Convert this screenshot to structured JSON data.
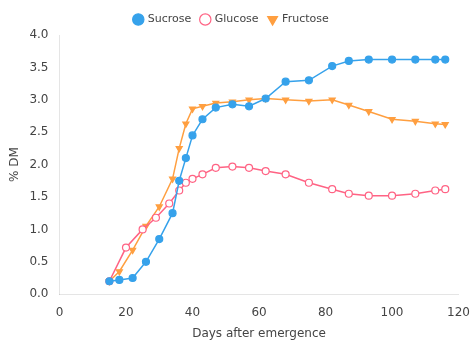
{
  "chart_data": {
    "type": "line",
    "xlabel": "Days after emergence",
    "ylabel": "% DM",
    "xlim": [
      0,
      120
    ],
    "ylim": [
      0.0,
      4.0
    ],
    "xticks": [
      0,
      20,
      40,
      60,
      80,
      100,
      120
    ],
    "yticks": [
      {
        "value": 0.0,
        "label": "0.0"
      },
      0.5,
      {
        "value": 1.0,
        "label": "1.0"
      },
      1.5,
      {
        "value": 2.0,
        "label": "2.0"
      },
      2.5,
      {
        "value": 3.0,
        "label": "3.0"
      },
      3.5,
      {
        "value": 4.0,
        "label": "4.0"
      }
    ],
    "grid": false,
    "legend": "top",
    "series": [
      {
        "name": "Sucrose",
        "marker": "circle",
        "x": [
          15,
          18,
          22,
          26,
          30,
          34,
          36,
          38,
          40,
          43,
          47,
          52,
          57,
          62,
          68,
          75,
          82,
          87,
          93,
          100,
          107,
          113,
          116
        ],
        "values": [
          0.2,
          0.22,
          0.25,
          0.5,
          0.85,
          1.25,
          1.75,
          2.1,
          2.45,
          2.7,
          2.88,
          2.93,
          2.9,
          3.02,
          3.28,
          3.3,
          3.52,
          3.6,
          3.62,
          3.62,
          3.62,
          3.62,
          3.62
        ]
      },
      {
        "name": "Glucose",
        "marker": "open_circle",
        "x": [
          15,
          20,
          25,
          29,
          33,
          36,
          38,
          40,
          43,
          47,
          52,
          57,
          62,
          68,
          75,
          82,
          87,
          93,
          100,
          107,
          113,
          116
        ],
        "values": [
          0.2,
          0.72,
          1.0,
          1.18,
          1.4,
          1.6,
          1.72,
          1.78,
          1.85,
          1.95,
          1.97,
          1.95,
          1.9,
          1.85,
          1.72,
          1.62,
          1.55,
          1.52,
          1.52,
          1.55,
          1.6,
          1.62
        ]
      },
      {
        "name": "Fructose",
        "marker": "triangle_down",
        "x": [
          15,
          18,
          22,
          26,
          30,
          34,
          36,
          38,
          40,
          43,
          47,
          52,
          57,
          62,
          68,
          75,
          82,
          87,
          93,
          100,
          107,
          113,
          116
        ],
        "values": [
          0.2,
          0.35,
          0.68,
          1.05,
          1.35,
          1.78,
          2.25,
          2.63,
          2.86,
          2.9,
          2.95,
          2.97,
          3.0,
          3.02,
          3.0,
          2.98,
          3.0,
          2.92,
          2.82,
          2.7,
          2.67,
          2.63,
          2.62
        ]
      }
    ]
  }
}
